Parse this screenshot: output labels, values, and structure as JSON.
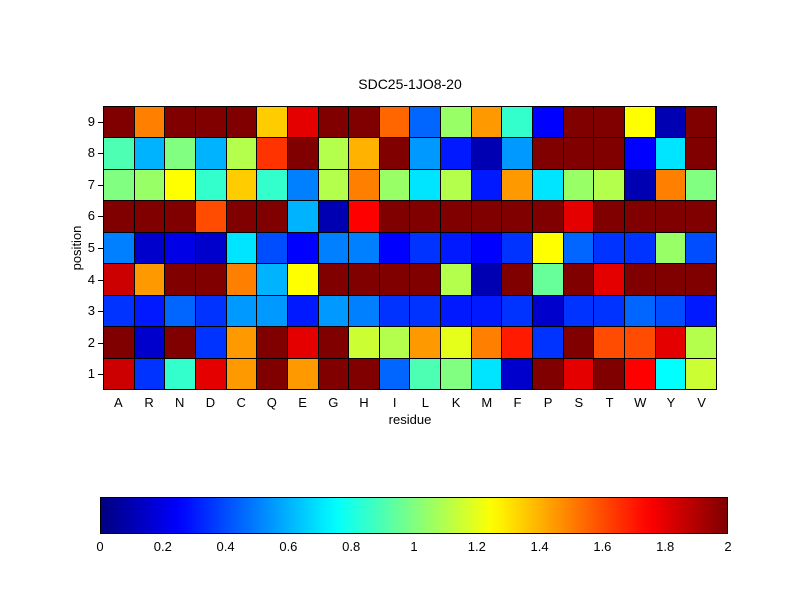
{
  "title": "SDC25-1JO8-20",
  "axes": {
    "xlabel": "residue",
    "ylabel": "position"
  },
  "chart_data": {
    "type": "heatmap",
    "title": "SDC25-1JO8-20",
    "xlabel": "residue",
    "ylabel": "position",
    "colormap": "jet",
    "vmin": 0,
    "vmax": 2,
    "legend_position": "colorbar-bottom",
    "grid": true,
    "columns": [
      "A",
      "R",
      "N",
      "D",
      "C",
      "Q",
      "E",
      "G",
      "H",
      "I",
      "L",
      "K",
      "M",
      "F",
      "P",
      "S",
      "T",
      "W",
      "Y",
      "V"
    ],
    "rows": [
      9,
      8,
      7,
      6,
      5,
      4,
      3,
      2,
      1
    ],
    "values": [
      [
        2.0,
        1.5,
        2.0,
        2.0,
        2.0,
        1.35,
        1.8,
        2.0,
        2.0,
        1.55,
        0.45,
        1.05,
        1.45,
        0.85,
        0.25,
        2.0,
        2.0,
        1.25,
        0.1,
        2.0
      ],
      [
        0.9,
        0.6,
        1.0,
        0.6,
        1.1,
        1.65,
        2.0,
        1.1,
        1.4,
        2.0,
        0.55,
        0.3,
        0.1,
        0.55,
        2.0,
        2.0,
        2.0,
        0.25,
        0.7,
        2.0
      ],
      [
        1.0,
        1.05,
        1.25,
        0.85,
        1.35,
        0.85,
        0.5,
        1.1,
        1.5,
        1.05,
        0.7,
        1.1,
        0.3,
        1.45,
        0.7,
        1.05,
        1.1,
        0.1,
        1.5,
        1.0
      ],
      [
        2.0,
        2.0,
        2.0,
        1.6,
        2.0,
        2.0,
        0.6,
        0.1,
        1.75,
        2.0,
        2.0,
        2.0,
        2.0,
        2.0,
        2.0,
        1.8,
        2.0,
        2.0,
        2.0,
        2.0
      ],
      [
        0.5,
        0.15,
        0.2,
        0.15,
        0.7,
        0.4,
        0.25,
        0.5,
        0.5,
        0.25,
        0.35,
        0.3,
        0.25,
        0.35,
        1.25,
        0.45,
        0.35,
        0.35,
        1.05,
        0.4
      ],
      [
        1.85,
        1.45,
        2.0,
        2.0,
        1.5,
        0.6,
        1.25,
        2.0,
        2.0,
        2.0,
        2.0,
        1.1,
        0.1,
        2.0,
        0.95,
        2.0,
        1.8,
        2.0,
        2.0,
        2.0
      ],
      [
        0.35,
        0.3,
        0.45,
        0.35,
        0.55,
        0.55,
        0.3,
        0.55,
        0.5,
        0.35,
        0.35,
        0.3,
        0.3,
        0.35,
        0.15,
        0.35,
        0.35,
        0.45,
        0.4,
        0.3
      ],
      [
        2.0,
        0.15,
        2.0,
        0.35,
        1.45,
        2.0,
        1.8,
        2.0,
        1.15,
        1.1,
        1.45,
        1.2,
        1.5,
        1.7,
        0.35,
        2.0,
        1.6,
        1.6,
        1.8,
        1.1
      ],
      [
        1.85,
        0.35,
        0.85,
        1.8,
        1.45,
        2.0,
        1.45,
        2.0,
        2.0,
        0.45,
        0.9,
        1.0,
        0.7,
        0.15,
        2.0,
        1.8,
        2.0,
        1.75,
        0.75,
        1.15
      ]
    ],
    "colorbar_ticks": [
      "0",
      "0.2",
      "0.4",
      "0.6",
      "0.8",
      "1",
      "1.2",
      "1.4",
      "1.6",
      "1.8",
      "2"
    ],
    "colors": {
      "min_color": "#000080",
      "mid_color": "#80ff80",
      "max_color": "#800000",
      "grid_line": "#000000",
      "background": "#ffffff",
      "text": "#000000"
    }
  }
}
